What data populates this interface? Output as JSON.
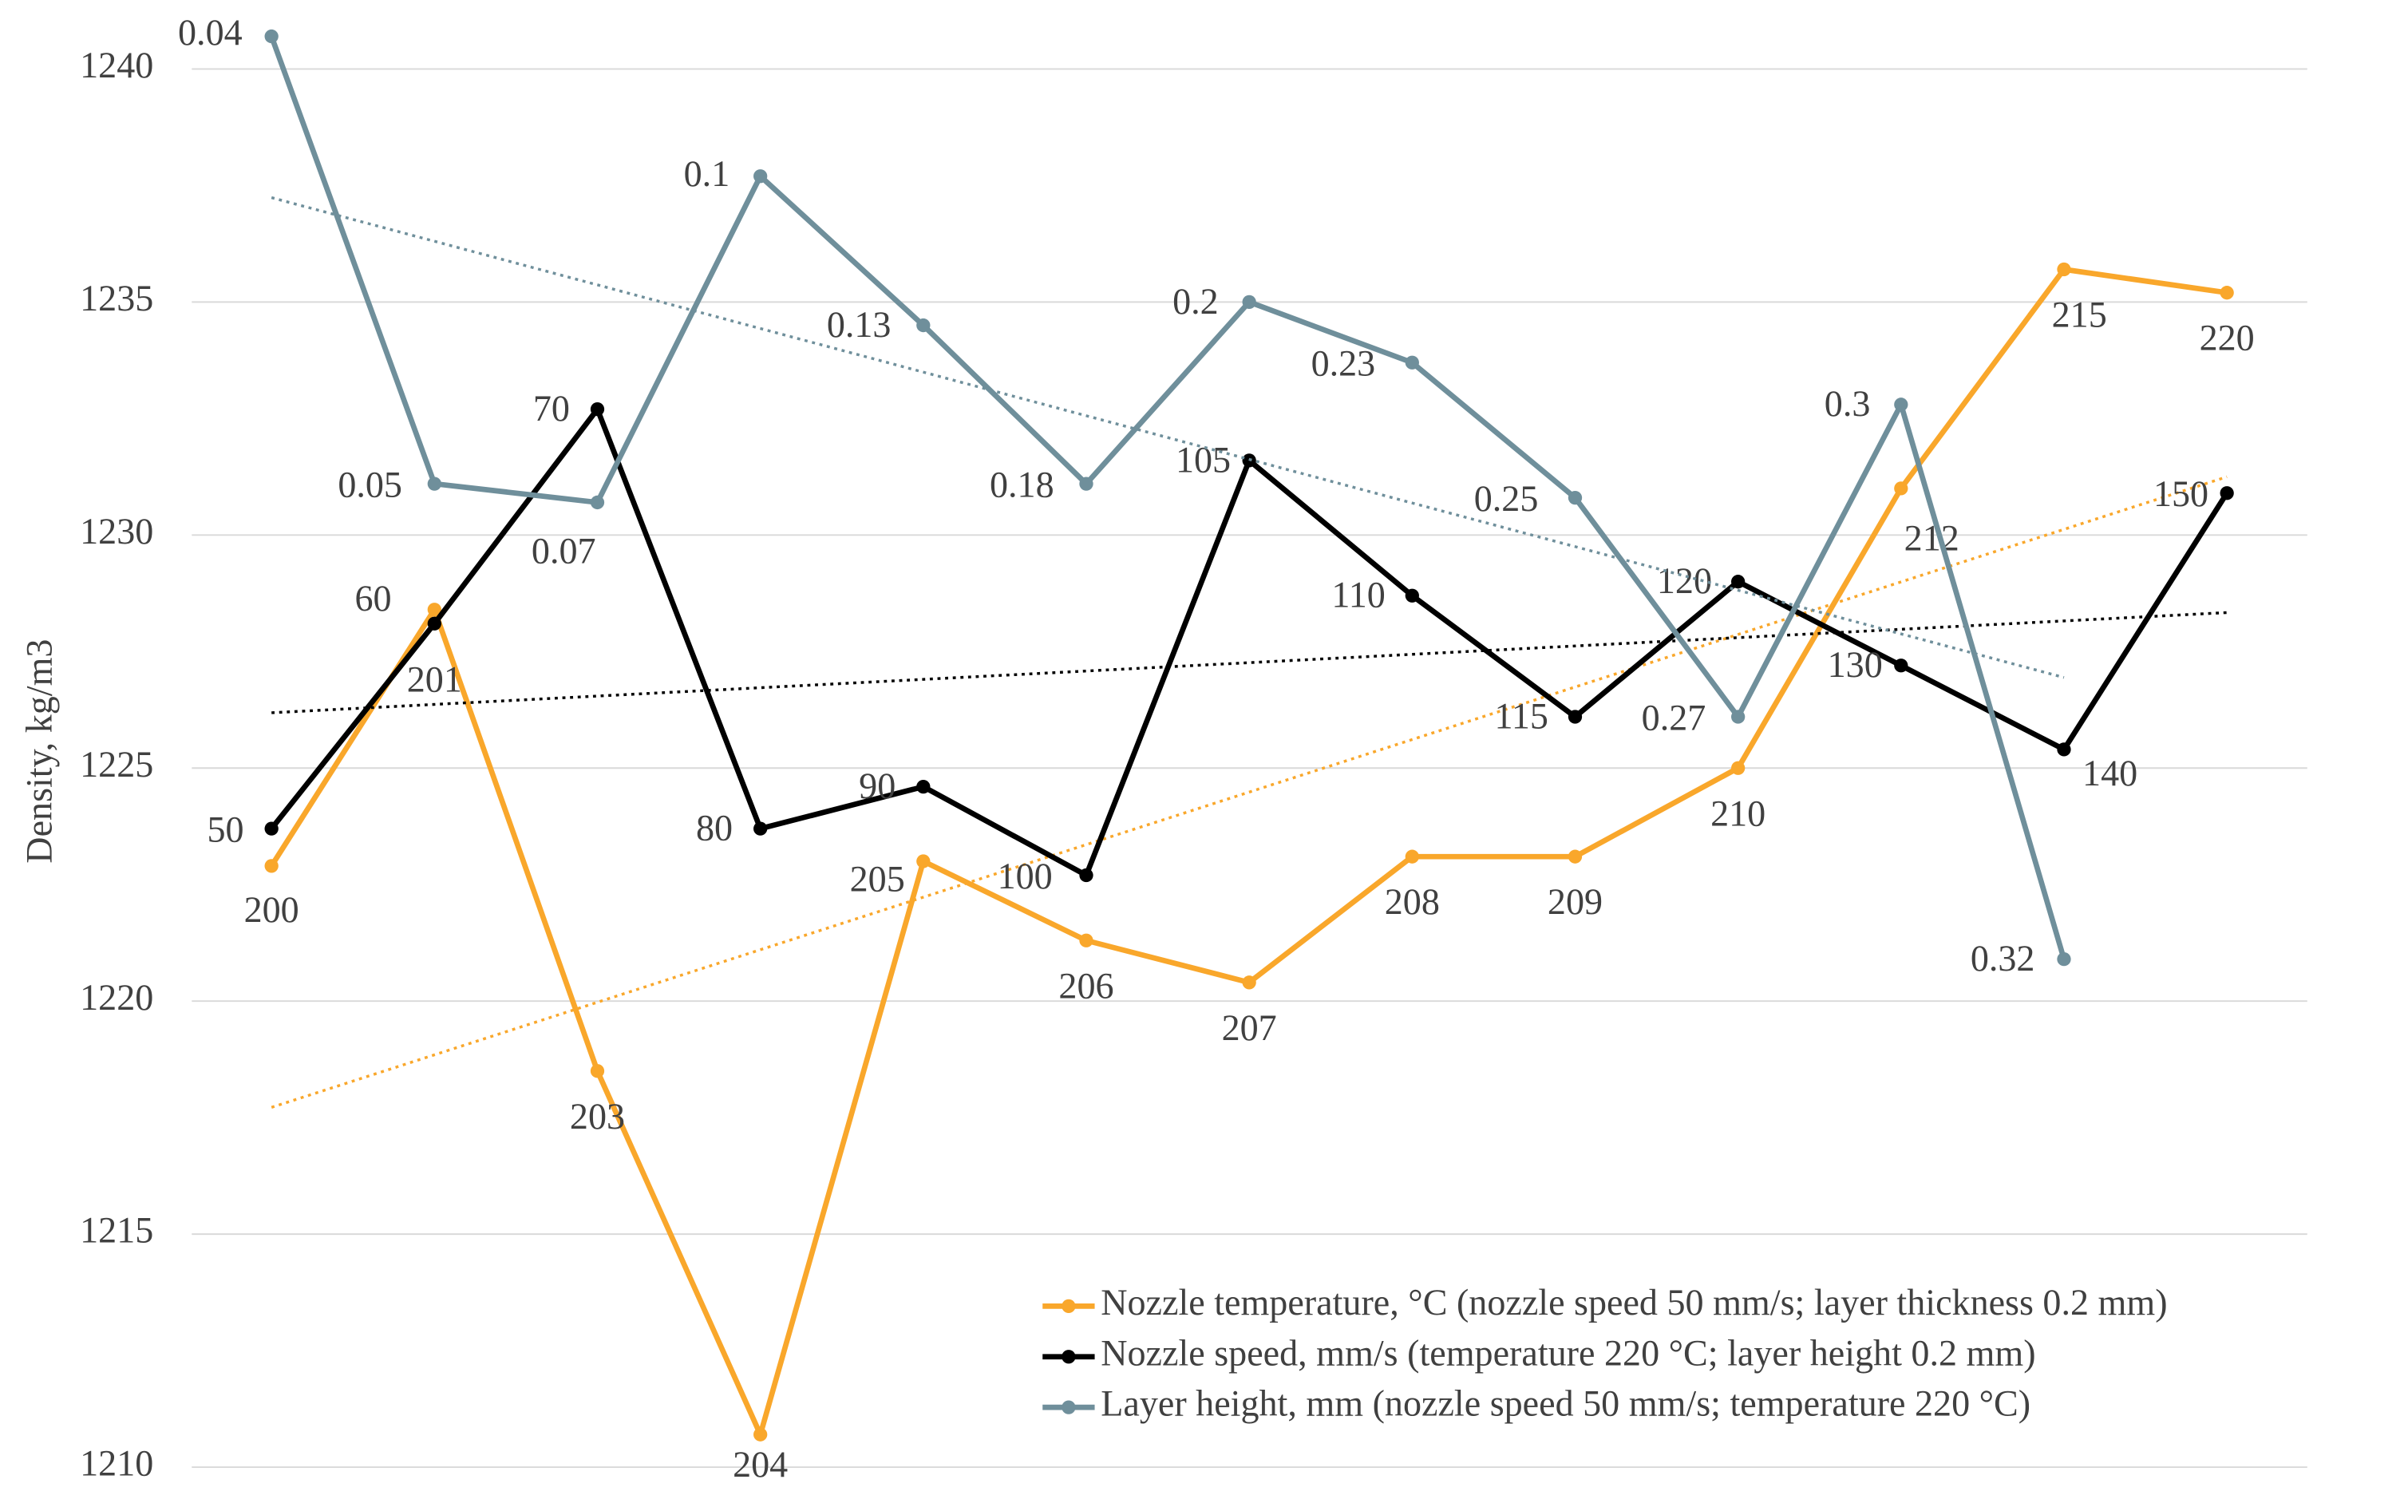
{
  "chart_data": {
    "type": "line",
    "y_label": "Density, kg/m3",
    "categories": [
      null,
      null,
      null,
      null,
      null,
      null,
      null,
      null,
      null,
      null,
      null,
      null,
      null
    ],
    "ylim": [
      1210,
      1240
    ],
    "yticks": [
      1210,
      1215,
      1220,
      1225,
      1230,
      1235,
      1240
    ],
    "grid": true,
    "legend": "bottom-right",
    "series": [
      {
        "name": "Nozzle temperature, °C (nozzle speed 50 mm/s; layer thickness 0.2 mm)",
        "color": "#f9a72b",
        "trendline": true,
        "values": [
          1222.9,
          1228.4,
          1218.5,
          1210.7,
          1223.0,
          1221.3,
          1220.4,
          1223.1,
          1223.1,
          1225.0,
          1231.0,
          1235.7,
          1235.2
        ],
        "point_labels": [
          "200",
          "201",
          "203",
          "204",
          "205",
          "206",
          "207",
          "208",
          "209",
          "210",
          "212",
          "215",
          "220"
        ]
      },
      {
        "name": "Nozzle speed, mm/s (temperature 220 °C; layer height 0.2 mm)",
        "color": "#000000",
        "trendline": true,
        "values": [
          1223.7,
          1228.1,
          1232.7,
          1223.7,
          1224.6,
          1222.7,
          1231.6,
          1228.7,
          1226.1,
          1229.0,
          1227.2,
          1225.4,
          1230.9
        ],
        "point_labels": [
          "50",
          "60",
          "70",
          "80",
          "90",
          "100",
          "105",
          "110",
          "115",
          "120",
          "130",
          "140",
          "150"
        ]
      },
      {
        "name": "Layer height, mm (nozzle speed 50 mm/s; temperature 220 °C)",
        "color": "#6f8f9b",
        "trendline": true,
        "values": [
          1240.7,
          1231.1,
          1230.7,
          1237.7,
          1234.5,
          1231.1,
          1235.0,
          1233.7,
          1230.8,
          1226.1,
          1232.8,
          1220.9,
          null
        ],
        "point_labels": [
          "0.04",
          "0.05",
          "0.07",
          "0.1",
          "0.13",
          "0.18",
          "0.2",
          "0.23",
          "0.25",
          "0.27",
          "0.3",
          "0.32",
          null
        ]
      }
    ]
  }
}
